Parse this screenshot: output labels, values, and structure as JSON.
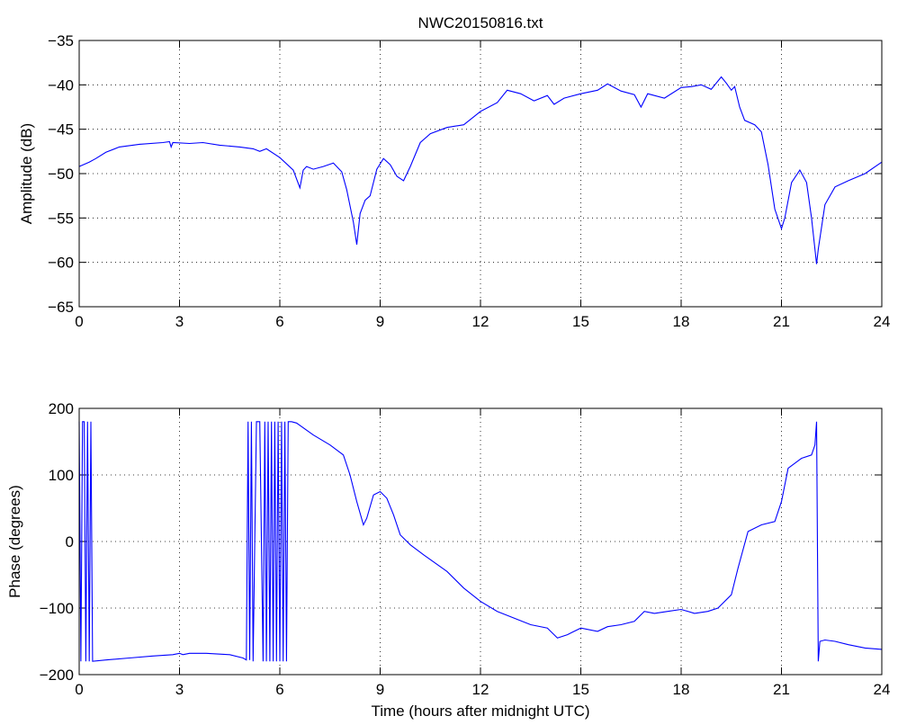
{
  "figure": {
    "title": "NWC20150816.txt",
    "line_color": "#0000ff",
    "xlabel": "Time (hours after midnight UTC)"
  },
  "chart_data": [
    {
      "type": "line",
      "title": "NWC20150816.txt",
      "xlabel": "",
      "ylabel": "Amplitude (dB)",
      "xlim": [
        0,
        24
      ],
      "ylim": [
        -65,
        -35
      ],
      "xticks": [
        0,
        3,
        6,
        9,
        12,
        15,
        18,
        21,
        24
      ],
      "yticks": [
        -65,
        -60,
        -55,
        -50,
        -45,
        -40,
        -35
      ],
      "grid": true,
      "series": [
        {
          "x": [
            0,
            0.3,
            0.5,
            0.8,
            1.2,
            1.8,
            2.5,
            2.7,
            2.75,
            2.8,
            3.3,
            3.7,
            4.2,
            4.8,
            5.2,
            5.4,
            5.6,
            6.0,
            6.4,
            6.6,
            6.7,
            6.8,
            7.0,
            7.3,
            7.6,
            7.85,
            8.0,
            8.2,
            8.3,
            8.4,
            8.55,
            8.7,
            8.9,
            9.1,
            9.3,
            9.5,
            9.7,
            9.9,
            10.2,
            10.5,
            11.0,
            11.5,
            12.0,
            12.5,
            12.8,
            13.2,
            13.6,
            14.0,
            14.2,
            14.5,
            15.0,
            15.5,
            15.8,
            16.2,
            16.6,
            16.8,
            17.0,
            17.5,
            18.0,
            18.3,
            18.6,
            18.9,
            19.2,
            19.35,
            19.5,
            19.6,
            19.75,
            19.9,
            20.2,
            20.4,
            20.6,
            20.8,
            21.0,
            21.1,
            21.3,
            21.55,
            21.75,
            21.9,
            22.05,
            22.1,
            22.3,
            22.6,
            23.0,
            23.5,
            24.0
          ],
          "y": [
            -49.2,
            -48.7,
            -48.3,
            -47.6,
            -47.0,
            -46.7,
            -46.5,
            -46.4,
            -47.0,
            -46.5,
            -46.6,
            -46.5,
            -46.8,
            -47.0,
            -47.2,
            -47.5,
            -47.2,
            -48.2,
            -49.6,
            -51.6,
            -49.6,
            -49.2,
            -49.5,
            -49.2,
            -48.8,
            -49.8,
            -51.8,
            -55.5,
            -58.0,
            -54.5,
            -53.0,
            -52.5,
            -49.5,
            -48.3,
            -49.0,
            -50.3,
            -50.8,
            -49.2,
            -46.5,
            -45.5,
            -44.8,
            -44.5,
            -43.0,
            -42.0,
            -40.6,
            -41.0,
            -41.8,
            -41.2,
            -42.2,
            -41.5,
            -41.0,
            -40.6,
            -39.9,
            -40.7,
            -41.1,
            -42.5,
            -41.0,
            -41.5,
            -40.3,
            -40.2,
            -40.0,
            -40.5,
            -39.1,
            -39.8,
            -40.6,
            -40.2,
            -42.5,
            -44.0,
            -44.5,
            -45.3,
            -49.0,
            -54.0,
            -56.2,
            -55.0,
            -51.0,
            -49.6,
            -51.0,
            -55.0,
            -60.2,
            -58.5,
            -53.5,
            -51.5,
            -50.8,
            -50.0,
            -48.7
          ]
        }
      ]
    },
    {
      "type": "line",
      "title": "",
      "xlabel": "Time (hours after midnight UTC)",
      "ylabel": "Phase (degrees)",
      "xlim": [
        0,
        24
      ],
      "ylim": [
        -200,
        200
      ],
      "xticks": [
        0,
        3,
        6,
        9,
        12,
        15,
        18,
        21,
        24
      ],
      "yticks": [
        -200,
        -100,
        0,
        100,
        200
      ],
      "grid": true,
      "series": [
        {
          "x": [
            0,
            0.05,
            0.1,
            0.15,
            0.2,
            0.25,
            0.3,
            0.35,
            0.4,
            0.8,
            1.5,
            2.2,
            2.8,
            3.0,
            3.1,
            3.3,
            3.8,
            4.5,
            4.9,
            5.0,
            5.05,
            5.1,
            5.15,
            5.2,
            5.3,
            5.4,
            5.5,
            5.55,
            5.6,
            5.65,
            5.7,
            5.75,
            5.8,
            5.85,
            5.9,
            5.95,
            6.0,
            6.05,
            6.1,
            6.15,
            6.2,
            6.25,
            6.3,
            6.35,
            6.5,
            7.0,
            7.5,
            7.9,
            8.1,
            8.3,
            8.5,
            8.6,
            8.8,
            9.0,
            9.2,
            9.4,
            9.6,
            9.9,
            10.3,
            11.0,
            11.5,
            12.0,
            12.5,
            13.0,
            13.5,
            14.0,
            14.3,
            14.6,
            15.0,
            15.5,
            15.8,
            16.2,
            16.6,
            16.9,
            17.2,
            17.6,
            18.0,
            18.4,
            18.8,
            19.1,
            19.5,
            19.7,
            20.0,
            20.4,
            20.8,
            21.0,
            21.2,
            21.6,
            21.9,
            22.0,
            22.05,
            22.1,
            22.15,
            22.3,
            22.6,
            23.0,
            23.5,
            24.0
          ],
          "y": [
            180,
            -180,
            180,
            180,
            -180,
            180,
            -180,
            180,
            -180,
            -178,
            -175,
            -172,
            -170,
            -168,
            -170,
            -168,
            -168,
            -170,
            -175,
            -178,
            180,
            -178,
            180,
            -180,
            180,
            180,
            -180,
            180,
            -180,
            180,
            -180,
            180,
            -180,
            180,
            -180,
            180,
            -180,
            180,
            -180,
            180,
            -180,
            180,
            180,
            180,
            178,
            160,
            145,
            130,
            100,
            60,
            25,
            35,
            70,
            75,
            65,
            40,
            10,
            -5,
            -20,
            -45,
            -70,
            -90,
            -105,
            -115,
            -125,
            -130,
            -145,
            -140,
            -130,
            -135,
            -128,
            -125,
            -120,
            -105,
            -108,
            -105,
            -102,
            -108,
            -105,
            -100,
            -80,
            -40,
            15,
            25,
            30,
            60,
            110,
            125,
            130,
            145,
            180,
            -180,
            -150,
            -148,
            -150,
            -155,
            -160,
            -162
          ]
        }
      ]
    }
  ]
}
